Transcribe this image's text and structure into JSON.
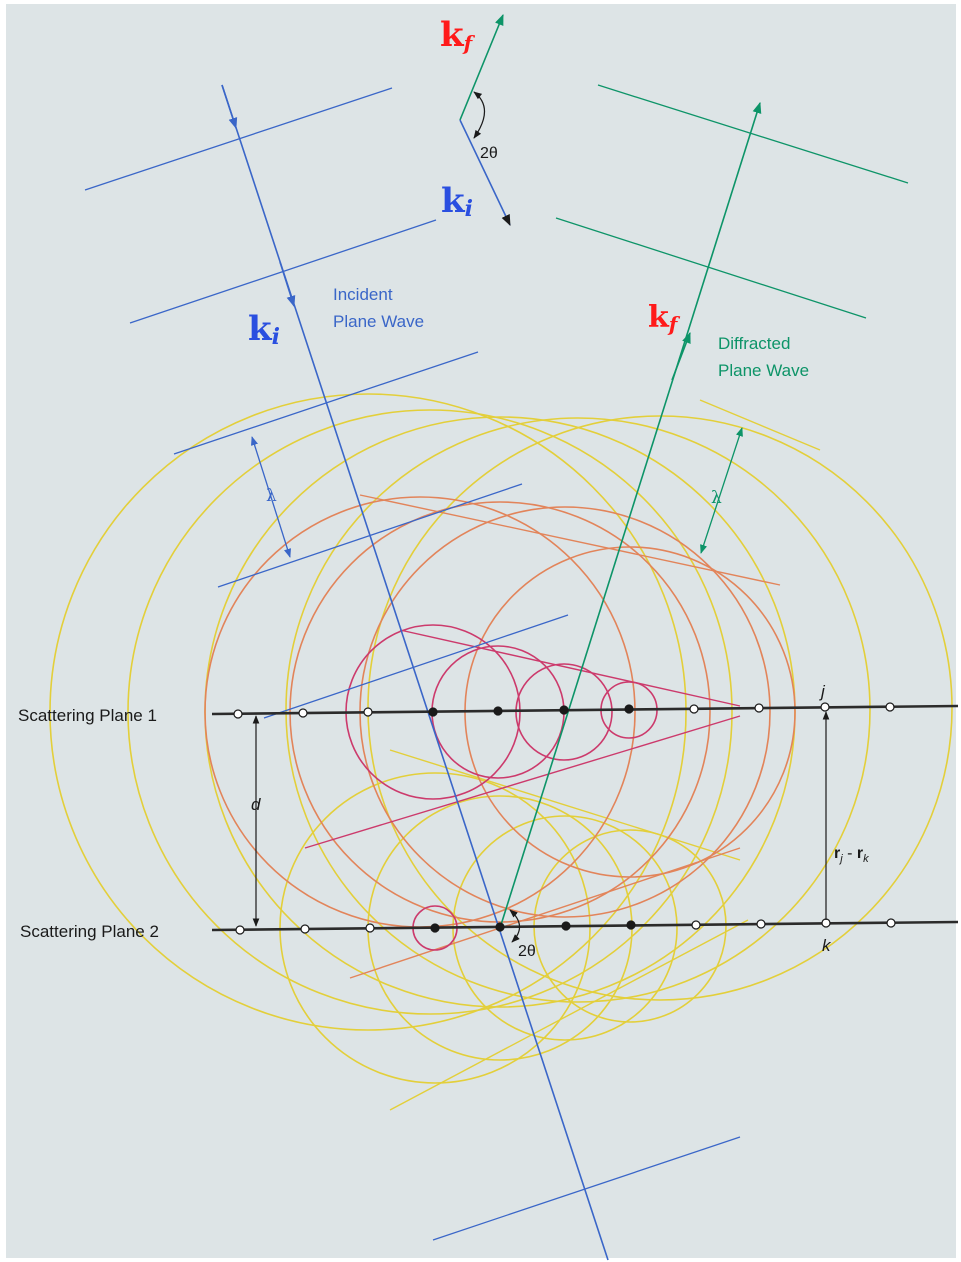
{
  "labels": {
    "kf_top": "k",
    "kf_top_sub": "f",
    "ki_top": "k",
    "ki_top_sub": "i",
    "angle_top": "2θ",
    "ki_mid": "k",
    "ki_mid_sub": "i",
    "kf_mid": "k",
    "kf_mid_sub": "f",
    "incident_line1": "Incident",
    "incident_line2": "Plane Wave",
    "diffracted_line1": "Diffracted",
    "diffracted_line2": "Plane Wave",
    "lambda_incident": "λ",
    "lambda_diffracted": "λ",
    "plane1": "Scattering Plane 1",
    "plane2": "Scattering Plane 2",
    "d": "d",
    "j": "j",
    "k": "k",
    "rj": "r",
    "rj_sub": "j",
    "rj_dash": " - ",
    "rk": "r",
    "rk_sub": "k",
    "angle_bottom": "2θ"
  },
  "colors": {
    "background": "#dde4e6",
    "incident": "#3a66c8",
    "diffracted": "#0d9468",
    "wavevector_label": "#ff1a1a",
    "wavevector_ki_label": "#2a4fe0",
    "plane_line": "#2b2b2b",
    "circle_yellow": "#e3cf3a",
    "circle_orange": "#e2845a",
    "circle_red": "#cc3a6c"
  }
}
